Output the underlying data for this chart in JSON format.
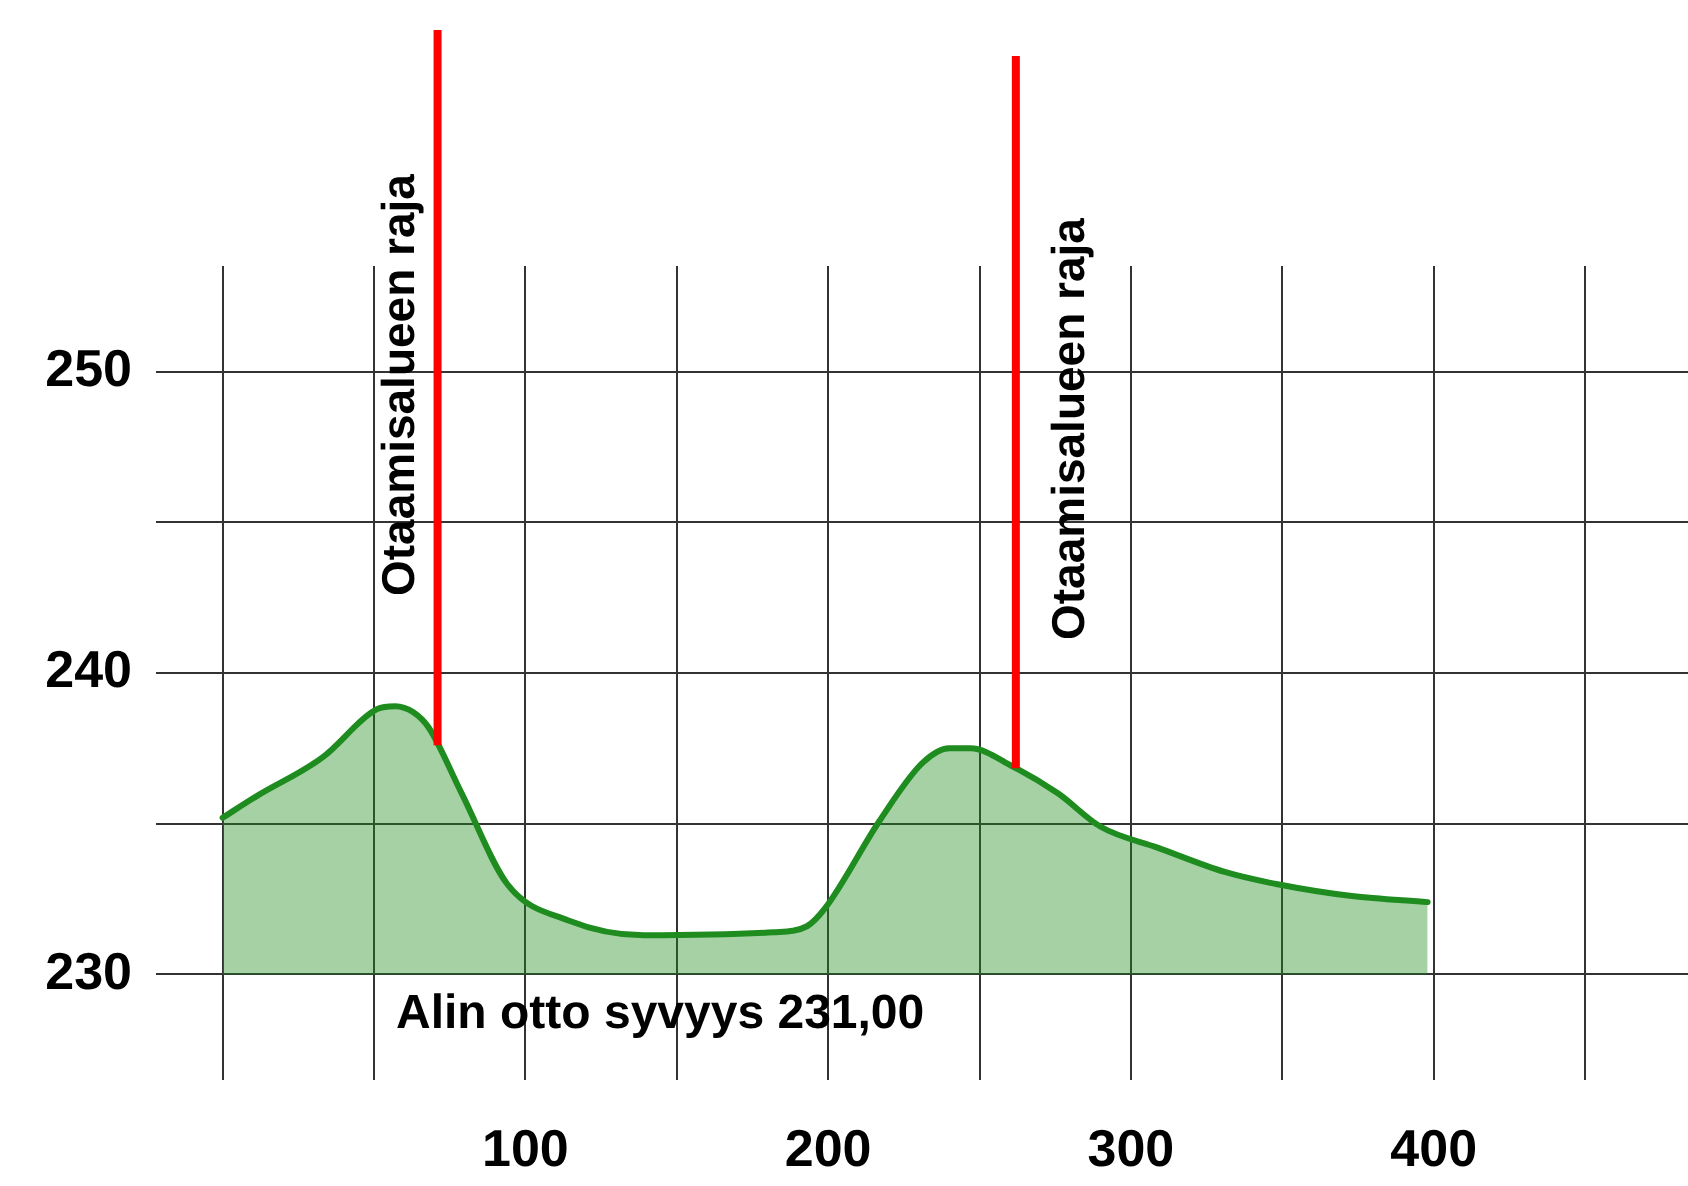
{
  "chart_data": {
    "type": "area",
    "x": [
      0,
      11,
      33,
      51,
      57,
      63,
      68,
      79,
      94,
      114,
      139,
      182,
      193,
      199,
      217,
      231,
      240,
      247,
      261,
      276,
      290,
      309,
      331,
      348,
      373,
      398
    ],
    "series": [
      {
        "color": "#1e8c1e",
        "values": [
          235.2,
          235.9,
          237.2,
          238.8,
          238.9,
          238.7,
          238.2,
          236.0,
          233.0,
          231.8,
          231.3,
          231.4,
          231.6,
          232.2,
          235.1,
          237.0,
          237.5,
          237.5,
          236.9,
          236.0,
          234.9,
          234.2,
          233.4,
          233.0,
          232.6,
          232.4
        ]
      }
    ],
    "xlim": [
      -22,
      484
    ],
    "xticks": [
      {
        "value": 0,
        "label": null
      },
      {
        "value": 50,
        "label": null
      },
      100,
      {
        "value": 150,
        "label": null
      },
      200,
      {
        "value": 250,
        "label": null
      },
      300,
      {
        "value": 350,
        "label": null
      },
      400,
      {
        "value": 450,
        "label": null
      }
    ],
    "ylim": [
      226.5,
      253.5
    ],
    "yticks": [
      230,
      {
        "value": 235,
        "label": null
      },
      240,
      {
        "value": 245,
        "label": null
      },
      250
    ],
    "grid": true,
    "marker": "none",
    "ref_lines": [
      {
        "axis": "x",
        "value": 71,
        "label": "Otaamisalueen raja",
        "color": "#ff0000"
      },
      {
        "axis": "x",
        "value": 262,
        "label": "Otaamisalueen raja",
        "color": "#ff0000"
      }
    ],
    "annotations": [
      "Alin otto syvyys 231,00"
    ]
  }
}
